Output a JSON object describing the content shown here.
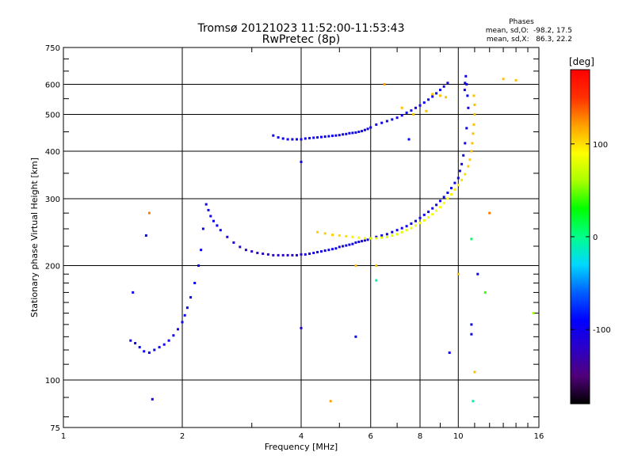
{
  "chart_data": {
    "type": "scatter",
    "title": "Tromsø 20121023 11:52:00-11:53:43",
    "subtitle": "RwPretec (8p)",
    "info": {
      "heading": "Phases",
      "line1": "mean, sd,O:  -98.2, 17.5",
      "line2": "mean, sd,X:   86.3, 22.2"
    },
    "xlabel": "Frequency [MHz]",
    "ylabel": "Stationary phase Virtual Height [km]",
    "x_scale": "log",
    "y_scale": "log",
    "xlim": [
      1,
      16
    ],
    "ylim": [
      75,
      750
    ],
    "grid": true,
    "x_ticks": [
      1,
      2,
      4,
      6,
      8,
      10,
      16
    ],
    "x_minor_ticks": [
      3,
      5,
      7,
      9,
      11,
      12,
      13,
      14,
      15
    ],
    "y_ticks": [
      75,
      100,
      200,
      300,
      400,
      500,
      600,
      750
    ],
    "y_minor_ticks": [
      80,
      90,
      110,
      120,
      130,
      140,
      150,
      160,
      170,
      180,
      190,
      225,
      250,
      275,
      350,
      450,
      550,
      650,
      700
    ],
    "colorbar": {
      "label": "[deg]",
      "range": [
        -180,
        180
      ],
      "ticks": [
        100,
        0,
        -100
      ],
      "colors": [
        "#000000",
        "#50007a",
        "#2c00c8",
        "#0000ff",
        "#0060ff",
        "#00d8ff",
        "#00ff8a",
        "#00ff00",
        "#a8ff00",
        "#ffff00",
        "#ffa000",
        "#ff3000",
        "#ff0000"
      ]
    },
    "series": [
      {
        "x": [
          1.48,
          1.52,
          1.56,
          1.6,
          1.65,
          1.7,
          1.75,
          1.8,
          1.85,
          1.9,
          1.95,
          2.0,
          2.03,
          2.06,
          2.1,
          2.15,
          2.2,
          2.23,
          2.26,
          2.3,
          2.33,
          2.36,
          2.4,
          2.45,
          2.5,
          2.6,
          2.7,
          2.8,
          2.9,
          3.0,
          3.1,
          3.2,
          3.3,
          3.4,
          3.5,
          3.6,
          3.7,
          3.8,
          3.9,
          4.0,
          4.1,
          4.2,
          4.3,
          4.4,
          4.5,
          4.6,
          4.7,
          4.8,
          4.9,
          5.0,
          5.1,
          5.2,
          5.3,
          5.4,
          5.5,
          5.6,
          5.7,
          5.8,
          5.9,
          6.0,
          6.2,
          6.4,
          6.6,
          6.8,
          7.0,
          7.2,
          7.4,
          7.6,
          7.8,
          8.0,
          8.2,
          8.4,
          8.6,
          8.8,
          9.0,
          9.2,
          9.4,
          9.6,
          9.8,
          10.0,
          10.1,
          10.2,
          10.3,
          10.4,
          10.5,
          10.6,
          10.55,
          10.5,
          10.45,
          10.4,
          10.38
        ],
        "y": [
          127,
          125,
          122,
          119,
          118,
          120,
          122,
          124,
          127,
          131,
          136,
          142,
          148,
          155,
          165,
          180,
          200,
          220,
          250,
          290,
          280,
          270,
          262,
          255,
          248,
          238,
          230,
          224,
          220,
          218,
          216,
          215,
          214,
          213,
          213,
          213,
          213,
          213,
          213,
          214,
          214,
          215,
          216,
          217,
          218,
          219,
          220,
          221,
          222,
          224,
          225,
          226,
          227,
          228,
          230,
          231,
          232,
          233,
          234,
          236,
          238,
          240,
          242,
          245,
          248,
          251,
          254,
          258,
          262,
          267,
          272,
          277,
          283,
          289,
          296,
          303,
          311,
          320,
          330,
          340,
          355,
          370,
          390,
          420,
          460,
          520,
          560,
          600,
          630,
          605,
          580
        ],
        "phase": [
          -100,
          -100,
          -100,
          -100,
          -100,
          -100,
          -100,
          -100,
          -100,
          -100,
          -100,
          -95,
          -95,
          -95,
          -95,
          -95,
          -95,
          -95,
          -100,
          -100,
          -100,
          -100,
          -100,
          -100,
          -100,
          -110,
          -110,
          -115,
          -120,
          -120,
          -120,
          -120,
          -120,
          -120,
          -120,
          -120,
          -120,
          -120,
          -115,
          -115,
          -110,
          -110,
          -105,
          -105,
          -100,
          -100,
          -100,
          -100,
          -100,
          -100,
          -100,
          -100,
          -100,
          -100,
          -100,
          -100,
          -100,
          -100,
          -100,
          -100,
          -100,
          -100,
          -100,
          -100,
          -100,
          -100,
          -100,
          -100,
          -100,
          -100,
          -100,
          -100,
          -100,
          -100,
          -100,
          -100,
          -100,
          -100,
          -100,
          -100,
          -100,
          -100,
          -100,
          -100,
          -100,
          -100,
          -100,
          -100,
          -100,
          -100,
          -100
        ]
      },
      {
        "x": [
          3.4,
          3.5,
          3.6,
          3.7,
          3.8,
          3.9,
          4.0,
          4.1,
          4.2,
          4.3,
          4.4,
          4.5,
          4.6,
          4.7,
          4.8,
          4.9,
          5.0,
          5.1,
          5.2,
          5.3,
          5.4,
          5.5,
          5.6,
          5.7,
          5.8,
          5.9,
          6.0
        ],
        "y": [
          440,
          435,
          432,
          430,
          430,
          430,
          430,
          432,
          433,
          434,
          435,
          436,
          437,
          438,
          439,
          440,
          441,
          443,
          444,
          446,
          447,
          448,
          450,
          452,
          455,
          458,
          462
        ],
        "phase": [
          -100,
          -100,
          -100,
          -100,
          -100,
          -100,
          -100,
          -100,
          -100,
          -100,
          -100,
          -100,
          -100,
          -100,
          -100,
          -100,
          -100,
          -100,
          -100,
          -100,
          -100,
          -100,
          -100,
          -100,
          -100,
          -100,
          -100
        ]
      },
      {
        "x": [
          6.2,
          6.4,
          6.6,
          6.8,
          7.0,
          7.2,
          7.4,
          7.6,
          7.8,
          8.0,
          8.2,
          8.4,
          8.6,
          8.8,
          9.0,
          9.2,
          9.4
        ],
        "y": [
          470,
          475,
          480,
          485,
          490,
          497,
          505,
          512,
          520,
          528,
          537,
          547,
          557,
          568,
          580,
          592,
          605
        ],
        "phase": [
          -100,
          -100,
          -100,
          -100,
          -100,
          -100,
          -100,
          -100,
          -100,
          -100,
          -100,
          -100,
          -100,
          -100,
          -100,
          -100,
          -100
        ]
      },
      {
        "x": [
          4.4,
          4.6,
          4.8,
          5.0,
          5.2,
          5.4,
          5.6,
          5.8,
          6.0,
          6.2,
          6.4,
          6.6,
          6.8,
          7.0,
          7.2,
          7.4,
          7.6,
          7.8,
          8.0,
          8.2,
          8.4,
          8.6,
          8.8,
          9.0,
          9.2,
          9.4,
          9.6,
          9.8,
          10.0,
          10.2,
          10.4,
          10.6,
          10.7,
          10.8,
          10.85,
          10.9,
          10.95,
          11.0,
          11.0,
          10.95
        ],
        "y": [
          245,
          243,
          241,
          240,
          239,
          238,
          237,
          236,
          236,
          236,
          237,
          238,
          240,
          242,
          245,
          248,
          251,
          255,
          259,
          263,
          268,
          273,
          279,
          285,
          292,
          300,
          308,
          317,
          326,
          336,
          348,
          365,
          380,
          400,
          420,
          445,
          470,
          500,
          530,
          560
        ],
        "phase": [
          105,
          105,
          105,
          100,
          100,
          95,
          90,
          85,
          80,
          80,
          80,
          80,
          80,
          80,
          80,
          80,
          85,
          85,
          85,
          85,
          85,
          85,
          85,
          90,
          90,
          90,
          95,
          95,
          95,
          100,
          100,
          105,
          105,
          110,
          110,
          110,
          110,
          110,
          110,
          110
        ]
      },
      {
        "x": [
          6.5,
          7.2,
          7.7,
          8.3,
          9.3,
          8.6,
          9.0
        ],
        "y": [
          600,
          520,
          500,
          510,
          555,
          565,
          560
        ],
        "phase": [
          120,
          110,
          110,
          110,
          110,
          110,
          110
        ]
      },
      {
        "x": [
          1.5,
          1.62,
          1.65,
          1.68,
          4.0,
          4.0,
          5.5,
          5.5,
          6.2,
          6.2,
          7.5,
          9.5,
          10.8,
          10.8,
          10.8,
          10.9,
          11.0,
          11.2,
          11.7,
          12.0,
          13.0,
          14.0,
          15.5,
          10.0,
          4.75
        ],
        "y": [
          170,
          240,
          275,
          89,
          137,
          375,
          200,
          130,
          200,
          183,
          430,
          118,
          235,
          140,
          132,
          88,
          105,
          190,
          170,
          275,
          620,
          615,
          150,
          190,
          88
        ],
        "phase": [
          -100,
          -100,
          130,
          -100,
          -110,
          -100,
          110,
          -100,
          110,
          -10,
          -90,
          -100,
          10,
          -100,
          -100,
          -10,
          110,
          -100,
          40,
          130,
          110,
          110,
          60,
          110,
          120
        ]
      }
    ]
  }
}
